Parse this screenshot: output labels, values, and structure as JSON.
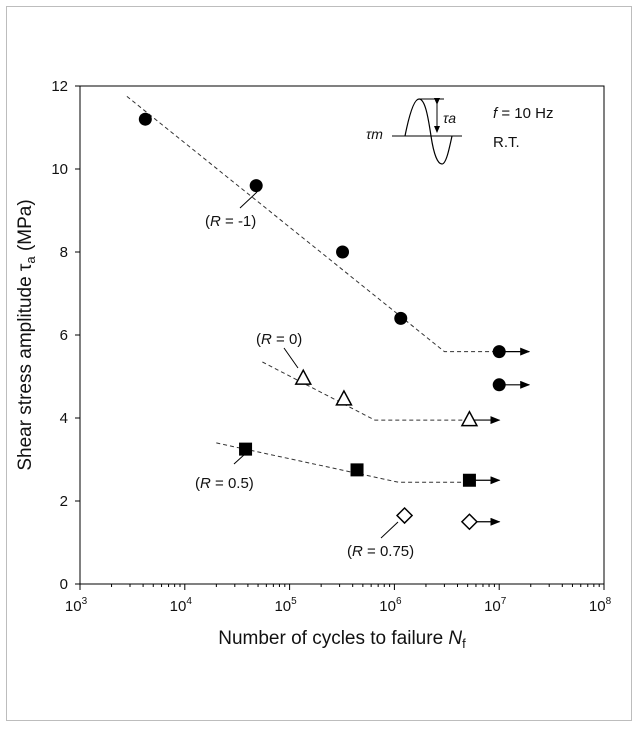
{
  "chart_data": {
    "type": "scatter",
    "xscale": "log",
    "xlabel": {
      "main": "Number of cycles to failure ",
      "italic": "N",
      "sub": "f"
    },
    "ylabel": {
      "main": "Shear stress amplitude ",
      "symbol": "τ",
      "sub": "a",
      "unit": " (MPa)"
    },
    "xlim": [
      1000,
      100000000
    ],
    "ylim": [
      0,
      12
    ],
    "xticks": [
      {
        "value": 1000,
        "base": "10",
        "exp": "3"
      },
      {
        "value": 10000,
        "base": "10",
        "exp": "4"
      },
      {
        "value": 100000,
        "base": "10",
        "exp": "5"
      },
      {
        "value": 1000000,
        "base": "10",
        "exp": "6"
      },
      {
        "value": 10000000,
        "base": "10",
        "exp": "7"
      },
      {
        "value": 100000000,
        "base": "10",
        "exp": "8"
      }
    ],
    "yticks": [
      0,
      2,
      4,
      6,
      8,
      10,
      12
    ],
    "grid": false,
    "legend": "none",
    "series": [
      {
        "label": {
          "pre": "(",
          "italic": "R",
          "post": " = -1)"
        },
        "marker": "filled-circle",
        "points": [
          {
            "x": 4200,
            "y": 11.2
          },
          {
            "x": 48000,
            "y": 9.6
          },
          {
            "x": 320000,
            "y": 8.0
          },
          {
            "x": 1150000,
            "y": 6.4
          },
          {
            "x": 10000000,
            "y": 5.6,
            "runout": true
          },
          {
            "x": 10000000,
            "y": 4.8,
            "runout": true
          }
        ],
        "fit": [
          {
            "x": 2800,
            "y": 11.75
          },
          {
            "x": 3000000,
            "y": 5.6
          },
          {
            "x": 10000000,
            "y": 5.6
          }
        ]
      },
      {
        "label": {
          "pre": "(",
          "italic": "R",
          "post": " = 0)"
        },
        "marker": "open-triangle",
        "points": [
          {
            "x": 135000,
            "y": 4.95
          },
          {
            "x": 330000,
            "y": 4.45
          },
          {
            "x": 5200000,
            "y": 3.95,
            "runout": true
          }
        ],
        "fit": [
          {
            "x": 55000,
            "y": 5.35
          },
          {
            "x": 650000,
            "y": 3.95
          },
          {
            "x": 5200000,
            "y": 3.95
          }
        ]
      },
      {
        "label": {
          "pre": "(",
          "italic": "R",
          "post": " = 0.5)"
        },
        "marker": "filled-square",
        "points": [
          {
            "x": 38000,
            "y": 3.25
          },
          {
            "x": 440000,
            "y": 2.75
          },
          {
            "x": 5200000,
            "y": 2.5,
            "runout": true
          }
        ],
        "fit": [
          {
            "x": 20000,
            "y": 3.4
          },
          {
            "x": 1100000,
            "y": 2.45
          },
          {
            "x": 5200000,
            "y": 2.45
          }
        ]
      },
      {
        "label": {
          "pre": "(",
          "italic": "R",
          "post": " = 0.75)"
        },
        "marker": "open-diamond",
        "points": [
          {
            "x": 1250000,
            "y": 1.65
          },
          {
            "x": 5200000,
            "y": 1.5,
            "runout": true
          }
        ],
        "fit": []
      }
    ],
    "annotations": {
      "frequency": {
        "italic": "f",
        "rest": " = 10 Hz"
      },
      "temperature": "R.T.",
      "inset_amplitude": "τa",
      "inset_mean": "τm"
    }
  }
}
